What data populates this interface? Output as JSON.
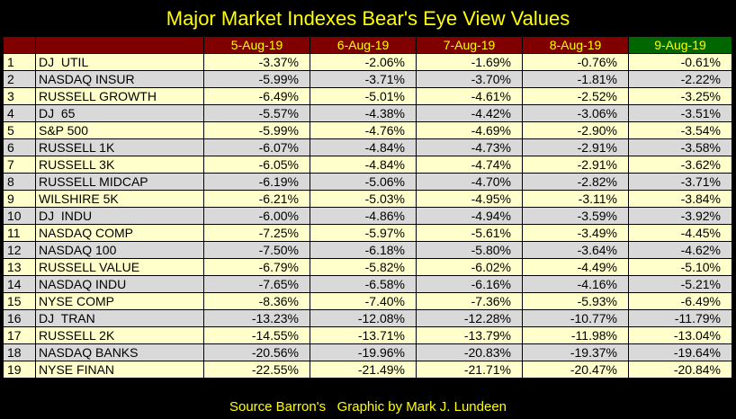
{
  "title": "Major Market Indexes Bear's Eye View Values",
  "headers": [
    "5-Aug-19",
    "6-Aug-19",
    "7-Aug-19",
    "8-Aug-19",
    "9-Aug-19"
  ],
  "rows": [
    {
      "n": "1",
      "name": "DJ  UTIL",
      "v": [
        "-3.37%",
        "-2.06%",
        "-1.69%",
        "-0.76%",
        "-0.61%"
      ]
    },
    {
      "n": "2",
      "name": "NASDAQ INSUR",
      "v": [
        "-5.99%",
        "-3.71%",
        "-3.70%",
        "-1.81%",
        "-2.22%"
      ]
    },
    {
      "n": "3",
      "name": "RUSSELL GROWTH",
      "v": [
        "-6.49%",
        "-5.01%",
        "-4.61%",
        "-2.52%",
        "-3.25%"
      ]
    },
    {
      "n": "4",
      "name": "DJ  65",
      "v": [
        "-5.57%",
        "-4.38%",
        "-4.42%",
        "-3.06%",
        "-3.51%"
      ]
    },
    {
      "n": "5",
      "name": "S&P 500",
      "v": [
        "-5.99%",
        "-4.76%",
        "-4.69%",
        "-2.90%",
        "-3.54%"
      ]
    },
    {
      "n": "6",
      "name": "RUSSELL 1K",
      "v": [
        "-6.07%",
        "-4.84%",
        "-4.73%",
        "-2.91%",
        "-3.58%"
      ]
    },
    {
      "n": "7",
      "name": "RUSSELL 3K",
      "v": [
        "-6.05%",
        "-4.84%",
        "-4.74%",
        "-2.91%",
        "-3.62%"
      ]
    },
    {
      "n": "8",
      "name": "RUSSELL MIDCAP",
      "v": [
        "-6.19%",
        "-5.06%",
        "-4.70%",
        "-2.82%",
        "-3.71%"
      ]
    },
    {
      "n": "9",
      "name": "WILSHIRE 5K",
      "v": [
        "-6.21%",
        "-5.03%",
        "-4.95%",
        "-3.11%",
        "-3.84%"
      ]
    },
    {
      "n": "10",
      "name": "DJ  INDU",
      "v": [
        "-6.00%",
        "-4.86%",
        "-4.94%",
        "-3.59%",
        "-3.92%"
      ]
    },
    {
      "n": "11",
      "name": "NASDAQ COMP",
      "v": [
        "-7.25%",
        "-5.97%",
        "-5.61%",
        "-3.49%",
        "-4.45%"
      ]
    },
    {
      "n": "12",
      "name": "NASDAQ 100",
      "v": [
        "-7.50%",
        "-6.18%",
        "-5.80%",
        "-3.64%",
        "-4.62%"
      ]
    },
    {
      "n": "13",
      "name": "RUSSELL VALUE",
      "v": [
        "-6.79%",
        "-5.82%",
        "-6.02%",
        "-4.49%",
        "-5.10%"
      ]
    },
    {
      "n": "14",
      "name": "NASDAQ INDU",
      "v": [
        "-7.65%",
        "-6.58%",
        "-6.16%",
        "-4.16%",
        "-5.21%"
      ]
    },
    {
      "n": "15",
      "name": "NYSE COMP",
      "v": [
        "-8.36%",
        "-7.40%",
        "-7.36%",
        "-5.93%",
        "-6.49%"
      ]
    },
    {
      "n": "16",
      "name": "DJ  TRAN",
      "v": [
        "-13.23%",
        "-12.08%",
        "-12.28%",
        "-10.77%",
        "-11.79%"
      ]
    },
    {
      "n": "17",
      "name": "RUSSELL 2K",
      "v": [
        "-14.55%",
        "-13.71%",
        "-13.79%",
        "-11.98%",
        "-13.04%"
      ]
    },
    {
      "n": "18",
      "name": "NASDAQ BANKS",
      "v": [
        "-20.56%",
        "-19.96%",
        "-20.83%",
        "-19.37%",
        "-19.64%"
      ]
    },
    {
      "n": "19",
      "name": "NYSE FINAN",
      "v": [
        "-22.55%",
        "-21.49%",
        "-21.71%",
        "-20.47%",
        "-20.84%"
      ]
    }
  ],
  "footer": "Source Barron's   Graphic by Mark J. Lundeen"
}
